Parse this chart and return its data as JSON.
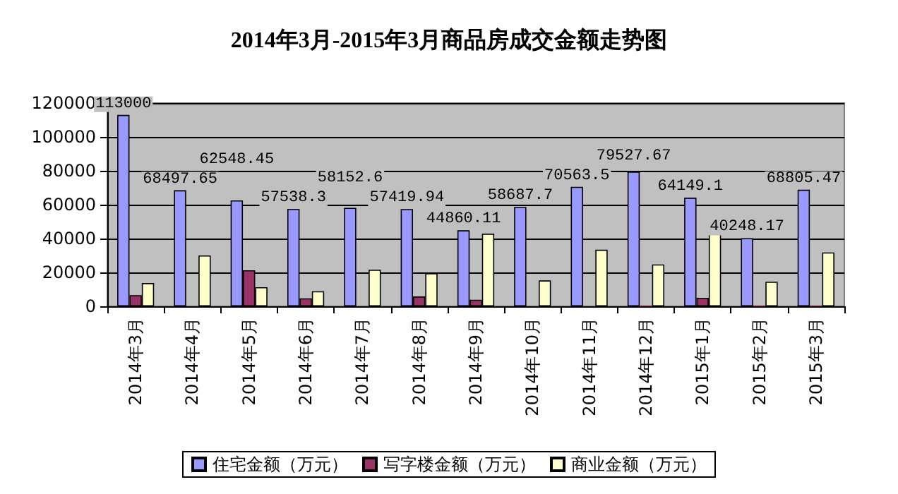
{
  "chart_data": {
    "type": "bar",
    "title": "2014年3月-2015年3月商品房成交金额走势图",
    "categories": [
      "2014年3月",
      "2014年4月",
      "2014年5月",
      "2014年6月",
      "2014年7月",
      "2014年8月",
      "2014年9月",
      "2014年10月",
      "2014年11月",
      "2014年12月",
      "2015年1月",
      "2015年2月",
      "2015年3月"
    ],
    "series": [
      {
        "name": "住宅金额（万元）",
        "color": "#9999ff",
        "values": [
          113000,
          68497.65,
          62548.45,
          57538.3,
          58152.6,
          57419.94,
          44860.11,
          58687.7,
          70563.5,
          79527.67,
          64149.1,
          40248.17,
          68805.47
        ],
        "value_labels": [
          "113000",
          "68497.65",
          "62548.45",
          "57538.3",
          "58152.6",
          "57419.94",
          "44860.11",
          "58687.7",
          "70563.5",
          "79527.67",
          "64149.1",
          "40248.17",
          "68805.47"
        ]
      },
      {
        "name": "写字楼金额（万元）",
        "color": "#993366",
        "values": [
          6600,
          0,
          21300,
          4700,
          0,
          5800,
          3900,
          0,
          0,
          500,
          5000,
          500,
          500
        ]
      },
      {
        "name": "商业金额（万元）",
        "color": "#ffffcc",
        "values": [
          13700,
          30000,
          11300,
          8900,
          21600,
          19500,
          42900,
          15300,
          33400,
          24700,
          43700,
          14500,
          31800
        ]
      }
    ],
    "ylim": [
      0,
      120000
    ],
    "yticks": [
      0,
      20000,
      40000,
      60000,
      80000,
      100000,
      120000
    ],
    "grid": "y",
    "legend": "bottom"
  }
}
